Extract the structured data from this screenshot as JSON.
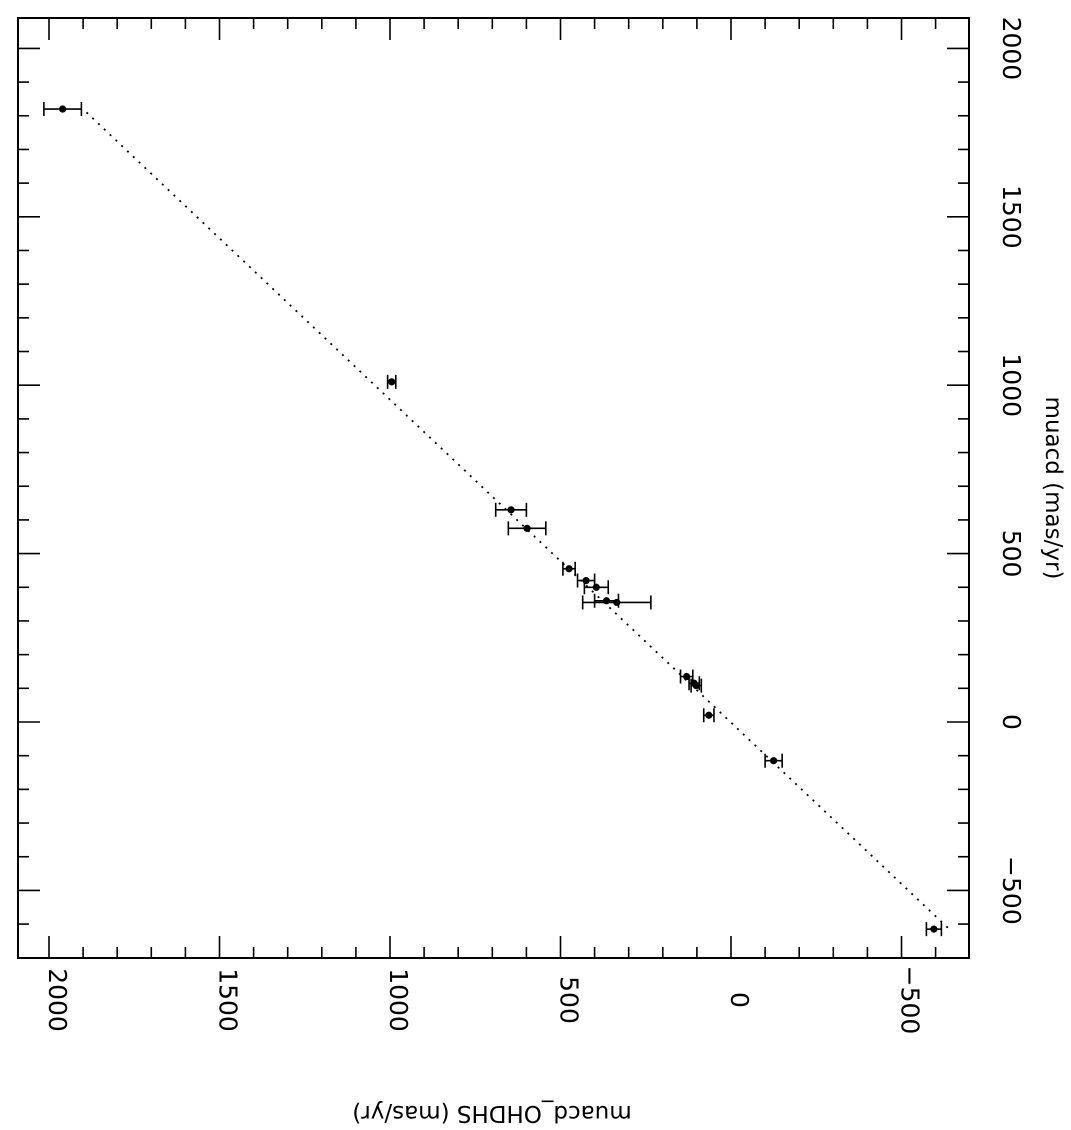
{
  "chart_data": {
    "type": "scatter",
    "orientation": "rotated-90-clockwise",
    "xlabel": "muacd_OHDHS (mas/yr)",
    "ylabel": "muacd (mas/yr)",
    "xlim": [
      -700,
      2050
    ],
    "ylim": [
      -700,
      2100
    ],
    "xticks": [
      2000,
      1500,
      1000,
      500,
      0,
      -500
    ],
    "yticks": [
      2000,
      1500,
      1000,
      500,
      0,
      -500
    ],
    "fit_line": {
      "style": "dotted",
      "from": [
        1890,
        1810
      ],
      "to": [
        -640,
        -615
      ]
    },
    "points": [
      {
        "x": 1960,
        "y": 1820,
        "xerr": 55
      },
      {
        "x": 995,
        "y": 1010,
        "xerr": 12
      },
      {
        "x": 645,
        "y": 630,
        "xerr": 45
      },
      {
        "x": 598,
        "y": 575,
        "xerr": 55
      },
      {
        "x": 475,
        "y": 455,
        "xerr": 18
      },
      {
        "x": 425,
        "y": 420,
        "xerr": 25
      },
      {
        "x": 395,
        "y": 400,
        "xerr": 35
      },
      {
        "x": 365,
        "y": 360,
        "xerr": 35
      },
      {
        "x": 335,
        "y": 355,
        "xerr": 100
      },
      {
        "x": 130,
        "y": 135,
        "xerr": 18
      },
      {
        "x": 108,
        "y": 115,
        "xerr": 15
      },
      {
        "x": 102,
        "y": 108,
        "xerr": 15
      },
      {
        "x": 65,
        "y": 20,
        "xerr": 15
      },
      {
        "x": -125,
        "y": -115,
        "xerr": 25
      },
      {
        "x": -595,
        "y": -615,
        "xerr": 22
      }
    ]
  }
}
